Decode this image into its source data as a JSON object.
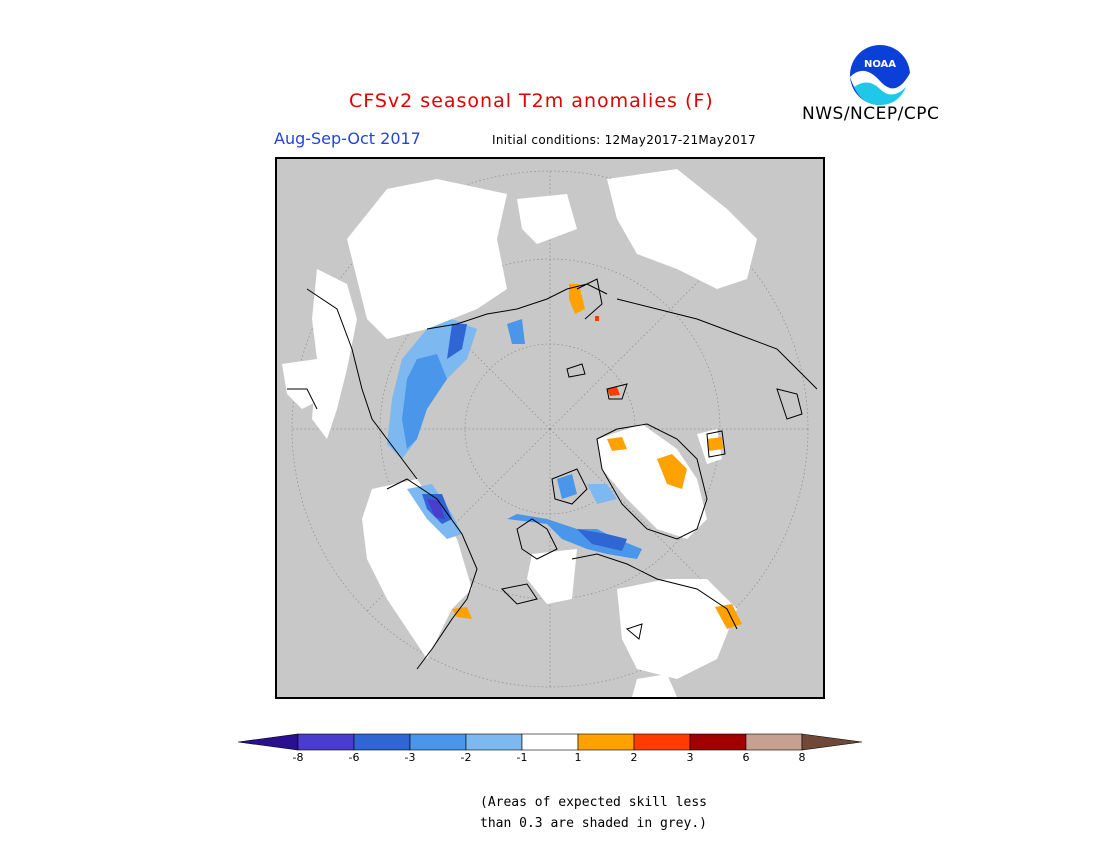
{
  "header": {
    "title": "CFSv2 seasonal T2m anomalies (F)",
    "agency": "NWS/NCEP/CPC",
    "logo_text": "NOAA",
    "season": "Aug-Sep-Oct 2017",
    "initial_conditions": "Initial conditions: 12May2017-21May2017"
  },
  "map": {
    "projection": "north polar stereographic",
    "background_color": "#c8c8c8"
  },
  "legend": {
    "ticks": [
      "-8",
      "-6",
      "-3",
      "-2",
      "-1",
      "1",
      "2",
      "3",
      "6",
      "8"
    ],
    "colors": {
      "below_-8": "#2a1090",
      "-8_-6": "#4a3ccc",
      "-6_-3": "#2f66d3",
      "-3_-2": "#4a96ea",
      "-2_-1": "#7db8f0",
      "-1_1": "#ffffff",
      "1_2": "#ffa200",
      "2_3": "#ff3c00",
      "3_6": "#a00000",
      "6_8": "#c8a090",
      "above_8": "#704838"
    }
  },
  "footnote": {
    "line1": "(Areas of expected skill less",
    "line2": "than 0.3 are shaded in grey.)"
  }
}
